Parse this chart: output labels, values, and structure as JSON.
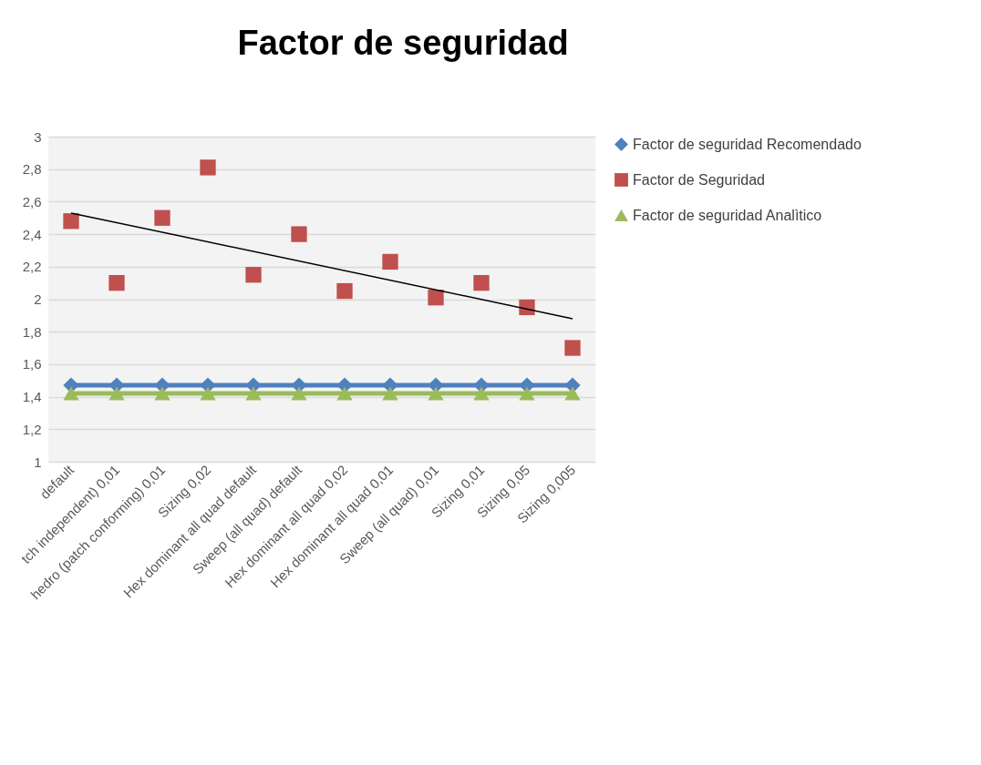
{
  "chart_data": {
    "type": "line",
    "title": "Factor de seguridad",
    "categories": [
      "default",
      "tch independent) 0,01",
      "hedro (patch conforming) 0,01",
      "Sizing 0,02",
      "Hex dominant all quad default",
      "Sweep (all quad) default",
      "Hex dominant all quad 0,02",
      "Hex dominant all quad 0,01",
      "Sweep (all quad) 0,01",
      "Sizing 0,01",
      "Sizing 0,05",
      "Sizing 0,005"
    ],
    "series": [
      {
        "name": "Factor de seguridad Recomendado",
        "type": "line",
        "marker": "diamond",
        "color": "#4f81bd",
        "values": [
          1.47,
          1.47,
          1.47,
          1.47,
          1.47,
          1.47,
          1.47,
          1.47,
          1.47,
          1.47,
          1.47,
          1.47
        ]
      },
      {
        "name": "Factor de Seguridad",
        "type": "scatter",
        "marker": "square",
        "color": "#c0504d",
        "values": [
          2.48,
          2.1,
          2.5,
          2.81,
          2.15,
          2.4,
          2.05,
          2.23,
          2.01,
          2.1,
          1.95,
          1.7
        ]
      },
      {
        "name": "Factor de seguridad Analìtico",
        "type": "line",
        "marker": "triangle",
        "color": "#9bbb59",
        "values": [
          1.42,
          1.42,
          1.42,
          1.42,
          1.42,
          1.42,
          1.42,
          1.42,
          1.42,
          1.42,
          1.42,
          1.42
        ]
      },
      {
        "type": "line",
        "marker": "none",
        "color": "#000000",
        "x": [
          "default",
          "Sizing 0,005"
        ],
        "values": [
          2.53,
          1.88
        ]
      }
    ],
    "ylim": [
      1,
      3
    ],
    "yticks": [
      {
        "value": 1,
        "label": "1"
      },
      {
        "value": 1.2,
        "label": "1,2"
      },
      {
        "value": 1.4,
        "label": "1,4"
      },
      {
        "value": 1.6,
        "label": "1,6"
      },
      {
        "value": 1.8,
        "label": "1,8"
      },
      {
        "value": 2,
        "label": "2"
      },
      {
        "value": 2.2,
        "label": "2,2"
      },
      {
        "value": 2.4,
        "label": "2,4"
      },
      {
        "value": 2.6,
        "label": "2,6"
      },
      {
        "value": 2.8,
        "label": "2,8"
      },
      {
        "value": 3,
        "label": "3"
      }
    ],
    "grid": "y",
    "legend": "right"
  }
}
